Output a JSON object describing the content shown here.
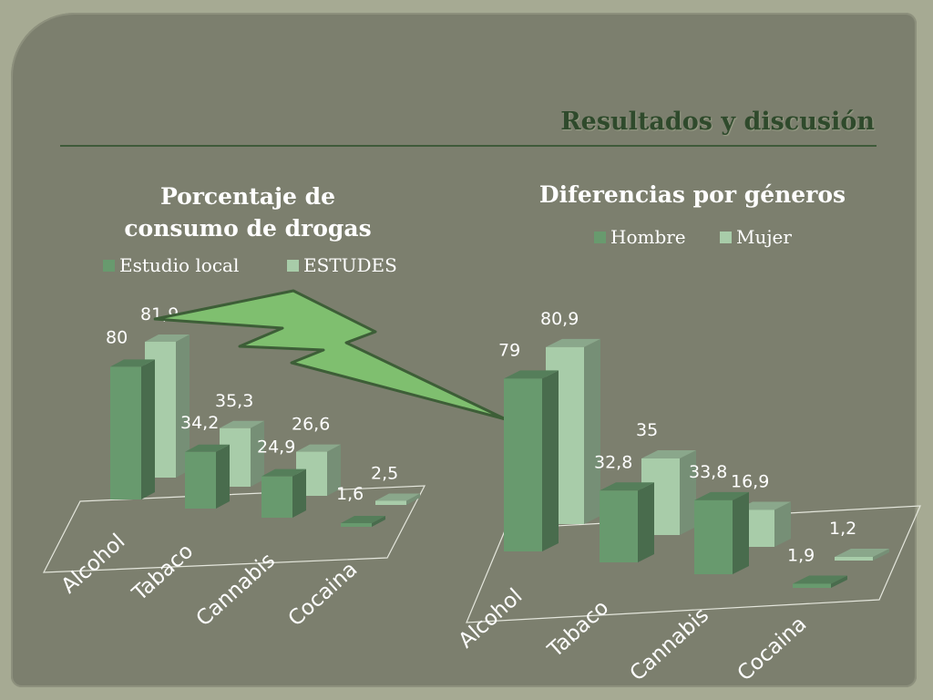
{
  "slide": {
    "title": "Resultados y discusión"
  },
  "colors": {
    "series1": "#689a6e",
    "series2": "#a8cca9",
    "background": "#7c7f6e",
    "arrow": "#7fbf6f"
  },
  "chart_data": [
    {
      "type": "bar",
      "title": "Porcentaje de consumo de drogas",
      "title_lines": [
        "Porcentaje de",
        "consumo de drogas"
      ],
      "categories": [
        "Alcohol",
        "Tabaco",
        "Cannabis",
        "Cocaina"
      ],
      "series": [
        {
          "name": "Estudio local",
          "values": [
            80,
            34.2,
            24.9,
            1.6
          ],
          "labels": [
            "80",
            "34,2",
            "24,9",
            "1,6"
          ]
        },
        {
          "name": "ESTUDES",
          "values": [
            81.9,
            35.3,
            26.6,
            2.5
          ],
          "labels": [
            "81,9",
            "35,3",
            "26,6",
            "2,5"
          ]
        }
      ],
      "style": "3d-column",
      "legend": "top",
      "grid": false
    },
    {
      "type": "bar",
      "title": "Diferencias por géneros",
      "title_lines": [
        "Diferencias por géneros"
      ],
      "categories": [
        "Alcohol",
        "Tabaco",
        "Cannabis",
        "Cocaina"
      ],
      "series": [
        {
          "name": "Hombre",
          "values": [
            79,
            32.8,
            33.8,
            1.9
          ],
          "labels": [
            "79",
            "32,8",
            "33,8",
            "1,9"
          ]
        },
        {
          "name": "Mujer",
          "values": [
            80.9,
            35,
            16.9,
            1.2
          ],
          "labels": [
            "80,9",
            "35",
            "16,9",
            "1,2"
          ]
        }
      ],
      "style": "3d-column",
      "legend": "top",
      "grid": false
    }
  ]
}
